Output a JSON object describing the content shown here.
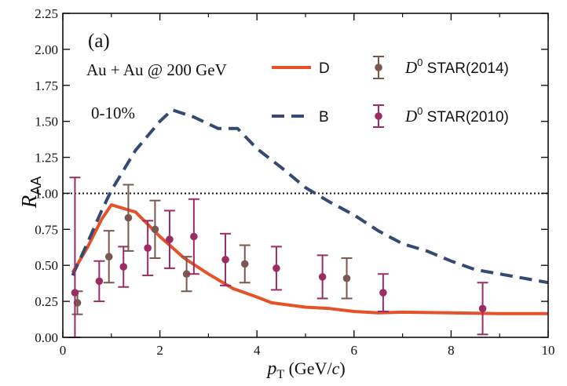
{
  "chart_data": {
    "type": "line",
    "panel_label": "(a)",
    "system_label": "Au + Au @ 200 GeV",
    "centrality_label": "0-10%",
    "xlabel": {
      "main": "p",
      "sub": "T",
      "units_pre": " (GeV/",
      "units_var": "c",
      "units_post": ")"
    },
    "ylabel": {
      "main": "R",
      "sub": "AA"
    },
    "xlim": [
      0,
      10
    ],
    "ylim": [
      0,
      2.25
    ],
    "xticks": [
      0,
      2,
      4,
      6,
      8,
      10
    ],
    "xtick_labels": [
      "0",
      "2",
      "4",
      "6",
      "8",
      "10"
    ],
    "yticks": [
      0,
      0.25,
      0.5,
      0.75,
      1.0,
      1.25,
      1.5,
      1.75,
      2.0,
      2.25
    ],
    "ytick_labels": [
      "0.00",
      "0.25",
      "0.50",
      "0.75",
      "1.00",
      "1.25",
      "1.50",
      "1.75",
      "2.00",
      "2.25"
    ],
    "reference_line": 1.0,
    "lines": [
      {
        "name": "D",
        "style": "solid",
        "color": "#e4522a",
        "x": [
          0.2,
          0.5,
          0.8,
          1.0,
          1.2,
          1.5,
          2.0,
          2.5,
          3.0,
          3.5,
          4.0,
          4.3,
          5.0,
          5.5,
          6.0,
          6.5,
          7.0,
          8.0,
          9.0,
          10.0
        ],
        "y": [
          0.45,
          0.62,
          0.82,
          0.92,
          0.9,
          0.87,
          0.7,
          0.55,
          0.44,
          0.34,
          0.28,
          0.24,
          0.21,
          0.2,
          0.18,
          0.17,
          0.175,
          0.17,
          0.165,
          0.165
        ]
      },
      {
        "name": "B",
        "style": "dashed",
        "color": "#344a72",
        "x": [
          0.2,
          0.5,
          0.8,
          1.0,
          1.5,
          2.0,
          2.25,
          2.7,
          3.2,
          3.6,
          4.0,
          4.5,
          5.0,
          5.5,
          6.0,
          6.5,
          7.0,
          7.5,
          8.0,
          8.5,
          9.0,
          10.0
        ],
        "y": [
          0.43,
          0.65,
          0.88,
          1.02,
          1.3,
          1.5,
          1.58,
          1.53,
          1.45,
          1.45,
          1.31,
          1.18,
          1.04,
          0.94,
          0.85,
          0.74,
          0.65,
          0.6,
          0.53,
          0.47,
          0.44,
          0.38
        ]
      }
    ],
    "series": [
      {
        "name": "D⁰ STAR(2014)",
        "label_main": "D",
        "label_sup": "0",
        "label_rest": " STAR(2014)",
        "color": "#7a5751",
        "points": [
          {
            "x": 0.3,
            "y": 0.24,
            "err": 0.08
          },
          {
            "x": 0.95,
            "y": 0.56,
            "err": 0.18
          },
          {
            "x": 1.35,
            "y": 0.83,
            "err": 0.23
          },
          {
            "x": 1.9,
            "y": 0.75,
            "err": 0.2
          },
          {
            "x": 2.55,
            "y": 0.44,
            "err": 0.12
          },
          {
            "x": 3.75,
            "y": 0.51,
            "err": 0.13
          },
          {
            "x": 5.85,
            "y": 0.41,
            "err": 0.14
          }
        ]
      },
      {
        "name": "D⁰ STAR(2010)",
        "label_main": "D",
        "label_sup": "0",
        "label_rest": " STAR(2010)",
        "color": "#9c2d62",
        "points": [
          {
            "x": 0.25,
            "y": 0.31,
            "err": 0.8
          },
          {
            "x": 0.75,
            "y": 0.39,
            "err": 0.14
          },
          {
            "x": 1.25,
            "y": 0.49,
            "err": 0.14
          },
          {
            "x": 1.75,
            "y": 0.62,
            "err": 0.19
          },
          {
            "x": 2.2,
            "y": 0.68,
            "err": 0.2
          },
          {
            "x": 2.7,
            "y": 0.7,
            "err": 0.26
          },
          {
            "x": 3.35,
            "y": 0.54,
            "err": 0.18
          },
          {
            "x": 4.4,
            "y": 0.48,
            "err": 0.15
          },
          {
            "x": 5.35,
            "y": 0.42,
            "err": 0.15
          },
          {
            "x": 6.6,
            "y": 0.31,
            "err": 0.13
          },
          {
            "x": 8.65,
            "y": 0.2,
            "err": 0.18
          }
        ]
      }
    ],
    "legend": {
      "position": "top-right"
    }
  }
}
